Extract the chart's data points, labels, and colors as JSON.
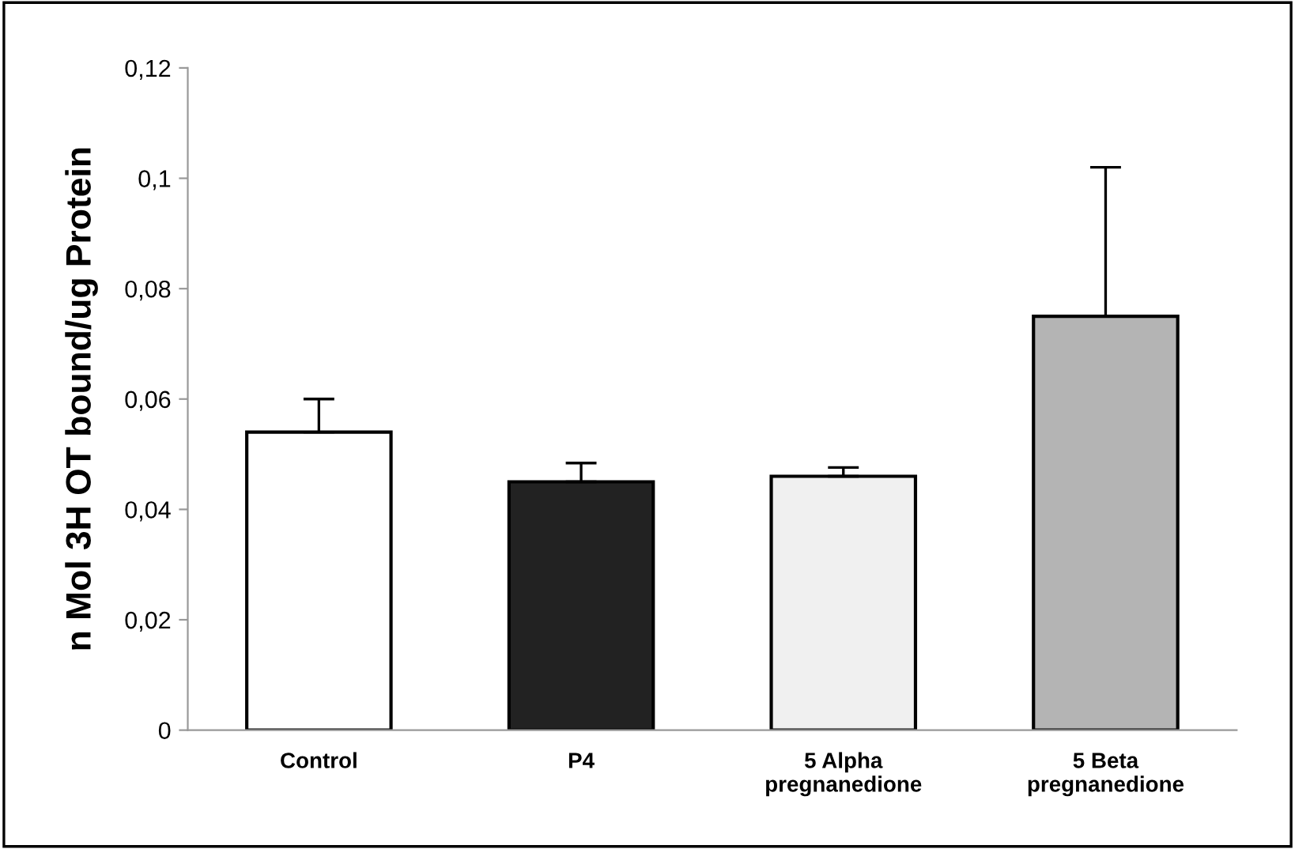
{
  "chart_data": {
    "type": "bar",
    "ylabel": "n Mol 3H OT bound/ug Protein",
    "categories": [
      "Control",
      "P4",
      "5 Alpha\npregnanedione",
      "5 Beta\npregnanedione"
    ],
    "values": [
      0.054,
      0.045,
      0.046,
      0.075
    ],
    "errors": [
      [
        0.054,
        0.06
      ],
      [
        0.045,
        0.0484
      ],
      [
        0.046,
        0.0476
      ],
      [
        0.075,
        0.102
      ]
    ],
    "colors": [
      "#ffffff",
      "#222222",
      "#f0f0f0",
      "#b4b4b4"
    ],
    "ylim": [
      0,
      0.12
    ],
    "yticks": [
      {
        "value": 0,
        "label": "0"
      },
      {
        "value": 0.02,
        "label": "0,02"
      },
      {
        "value": 0.04,
        "label": "0,04"
      },
      {
        "value": 0.06,
        "label": "0,06"
      },
      {
        "value": 0.08,
        "label": "0,08"
      },
      {
        "value": 0.1,
        "label": "0,1"
      },
      {
        "value": 0.12,
        "label": "0,12"
      }
    ],
    "grid": false,
    "legend": false
  }
}
